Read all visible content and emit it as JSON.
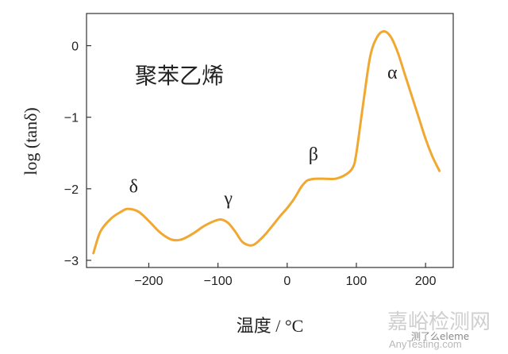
{
  "chart_data": {
    "type": "line",
    "title": "聚苯乙烯",
    "xlabel": "温度 / °C",
    "ylabel": "log (tanδ)",
    "xlim": [
      -290,
      240
    ],
    "ylim": [
      -3.1,
      0.45
    ],
    "x_ticks": [
      -200,
      -100,
      0,
      100,
      200
    ],
    "x_tick_labels": [
      "−200",
      "−100",
      "0",
      "100",
      "200"
    ],
    "y_ticks": [
      0,
      -1,
      -2,
      -3
    ],
    "y_tick_labels": [
      "0",
      "−1",
      "−2",
      "−3"
    ],
    "grid": false,
    "series_color": "#f0a830",
    "series": [
      {
        "x": [
          -280,
          -270,
          -255,
          -240,
          -230,
          -215,
          -200,
          -185,
          -170,
          -160,
          -150,
          -135,
          -120,
          -105,
          -95,
          -85,
          -75,
          -65,
          -55,
          -48,
          -40,
          -30,
          -20,
          -10,
          0,
          10,
          20,
          25,
          30,
          40,
          55,
          70,
          85,
          95,
          100,
          110,
          120,
          130,
          140,
          150,
          160,
          170,
          180,
          190,
          200,
          210,
          220
        ],
        "y": [
          -2.9,
          -2.6,
          -2.42,
          -2.32,
          -2.28,
          -2.32,
          -2.45,
          -2.6,
          -2.7,
          -2.72,
          -2.7,
          -2.62,
          -2.52,
          -2.45,
          -2.43,
          -2.48,
          -2.6,
          -2.74,
          -2.79,
          -2.78,
          -2.72,
          -2.62,
          -2.5,
          -2.38,
          -2.27,
          -2.14,
          -1.98,
          -1.92,
          -1.88,
          -1.86,
          -1.86,
          -1.86,
          -1.8,
          -1.7,
          -1.5,
          -0.8,
          -0.15,
          0.12,
          0.2,
          0.12,
          -0.1,
          -0.4,
          -0.7,
          -1.0,
          -1.3,
          -1.55,
          -1.75
        ]
      }
    ],
    "annotations": [
      {
        "text": "δ",
        "x": -222,
        "y": -2.05
      },
      {
        "text": "γ",
        "x": -85,
        "y": -2.22
      },
      {
        "text": "β",
        "x": 38,
        "y": -1.6
      },
      {
        "text": "α",
        "x": 152,
        "y": -0.46
      }
    ]
  },
  "watermark": {
    "main": "嘉峪检测网",
    "sub": "AnyTesting.com",
    "note": "测了么eleme"
  }
}
